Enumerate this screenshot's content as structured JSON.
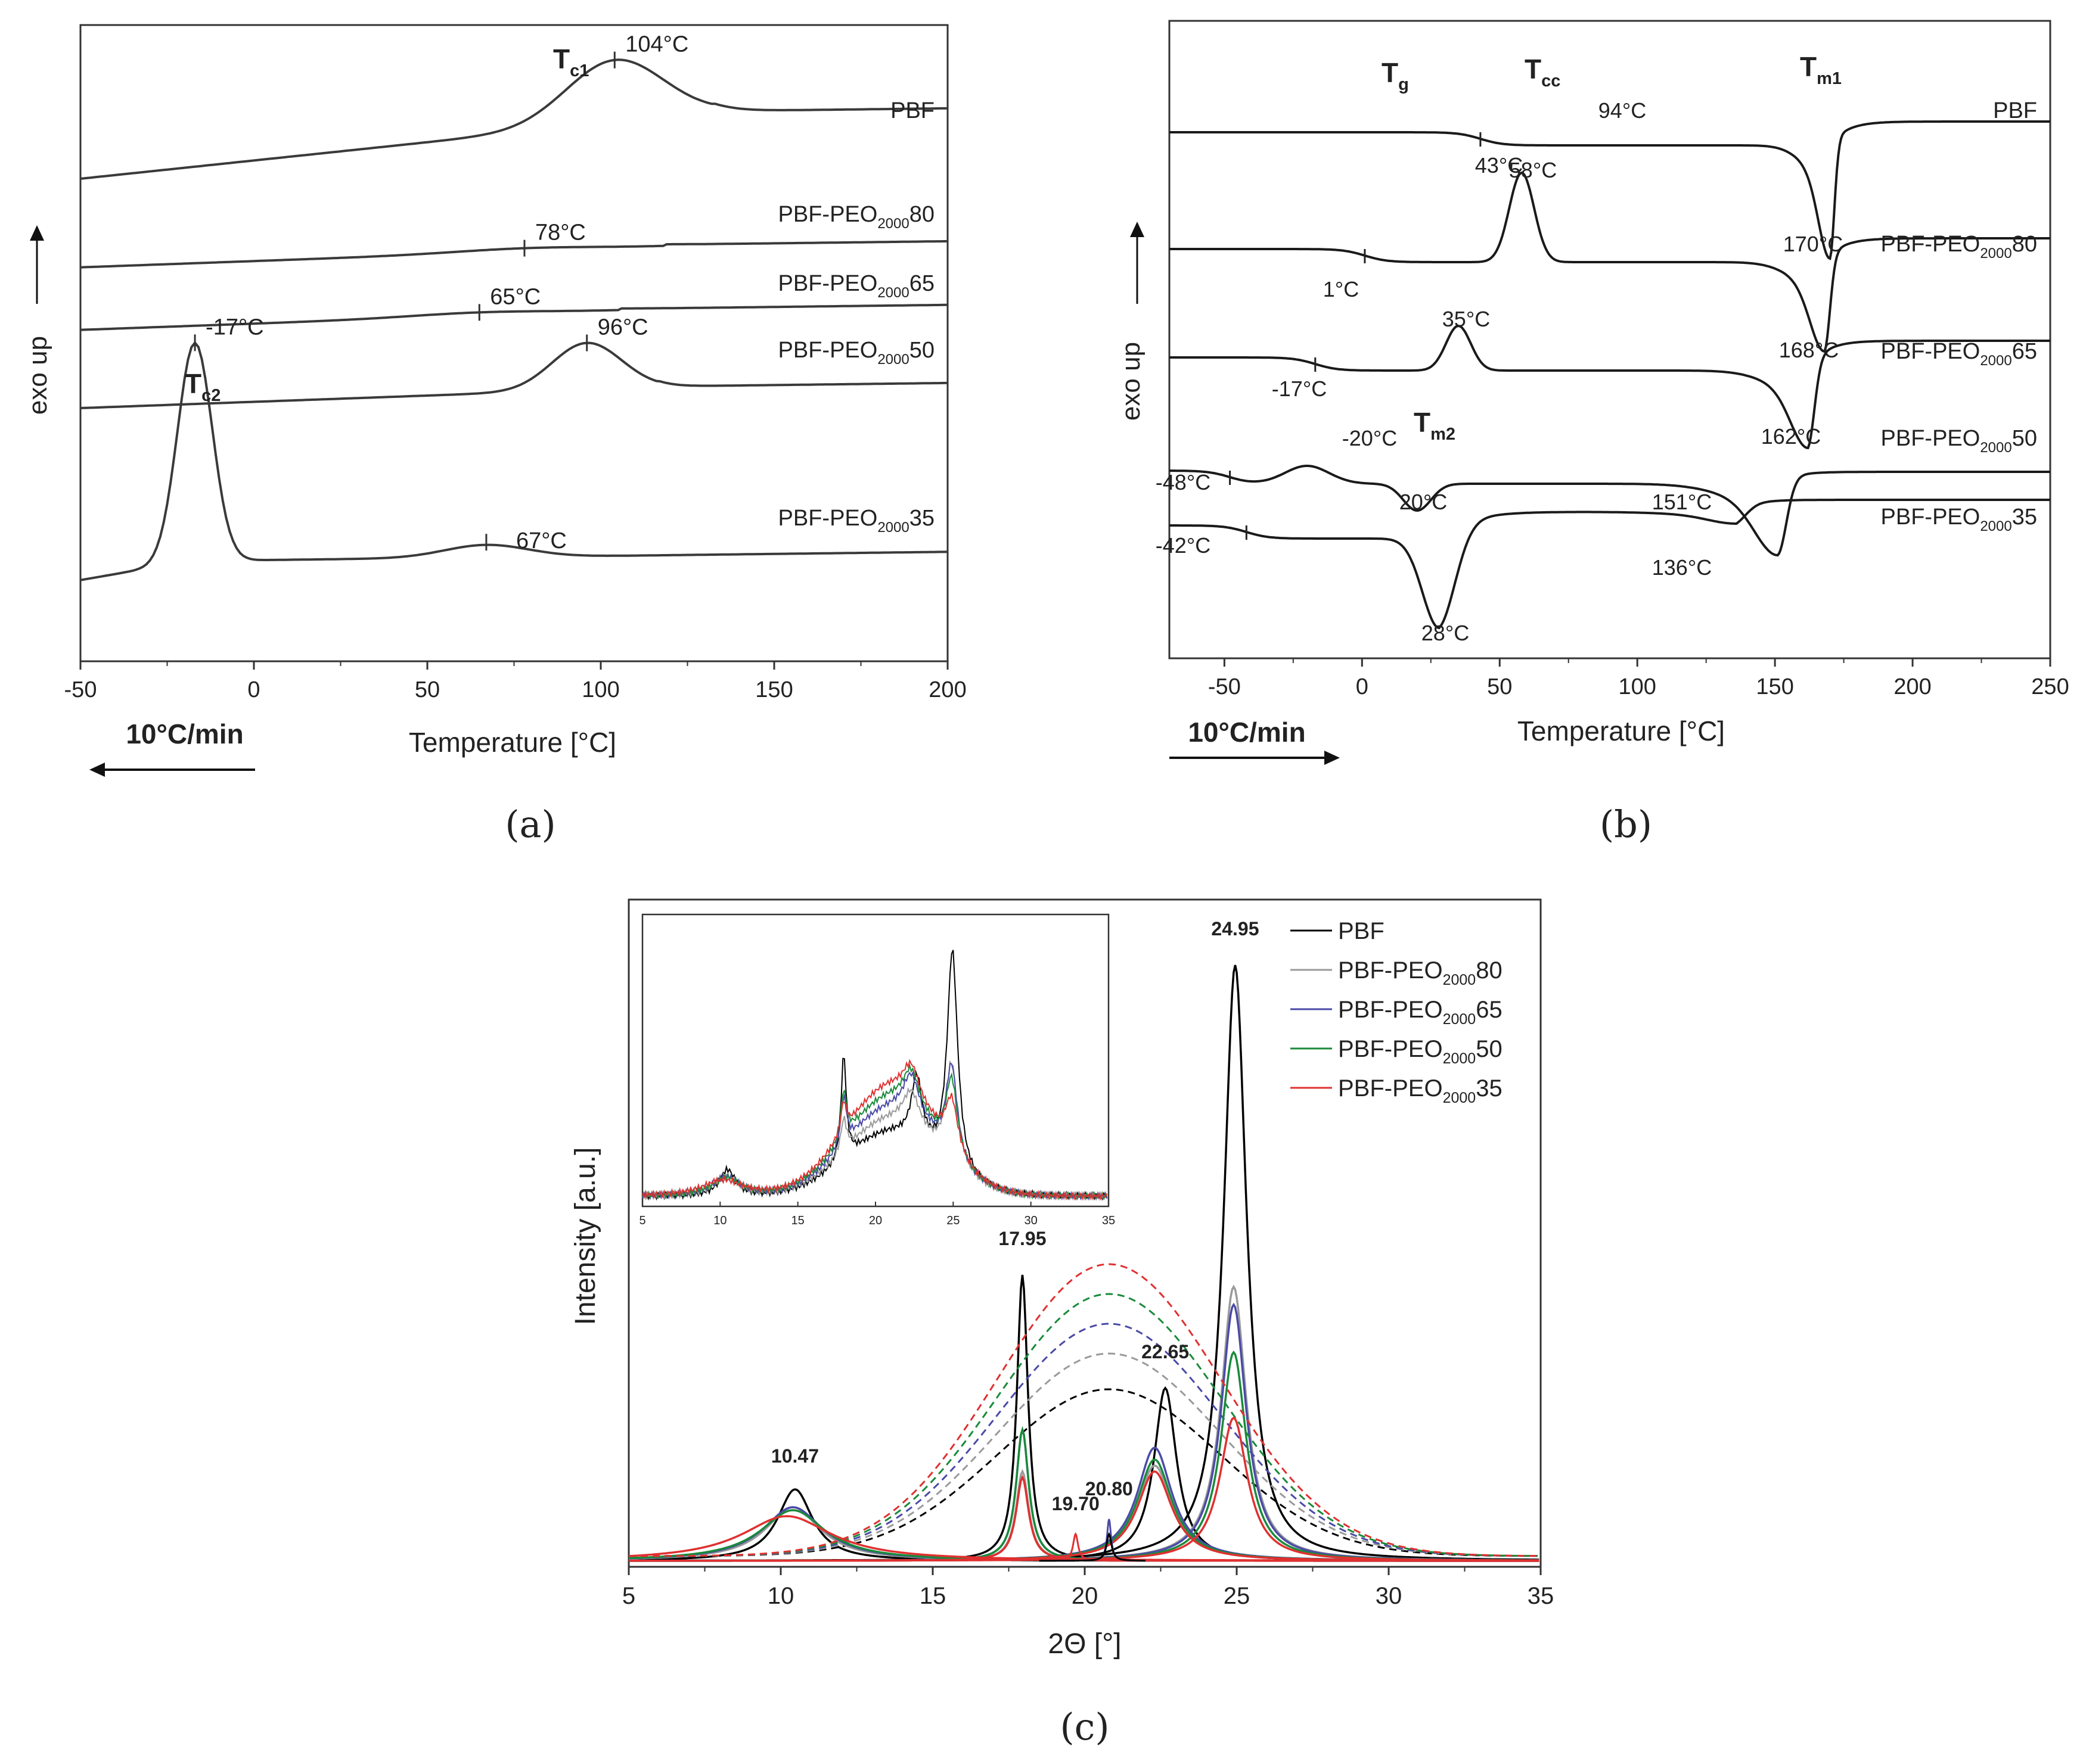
{
  "chart_data": [
    {
      "id": "a",
      "type": "line",
      "panel_label": "(a)",
      "xlabel": "Temperature [°C]",
      "ylabel": "exo up",
      "xlim": [
        -50,
        200
      ],
      "xticks": [
        -50,
        0,
        50,
        100,
        150,
        200
      ],
      "rate_label": "10°C/min",
      "rate_direction": "left",
      "transitions": [
        {
          "main": "T",
          "sub": "c1"
        },
        {
          "main": "T",
          "sub": "c2"
        }
      ],
      "series": [
        {
          "name": "PBF",
          "label_main": "PBF",
          "label_sub": "",
          "label_suffix": "",
          "peak": 104,
          "peak_label": "104°C",
          "offset": 4.4,
          "slope": 0.0035,
          "peak_height": 0.6,
          "peak_width": 14
        },
        {
          "name": "PBF-PEO200080",
          "label_main": "PBF-PEO",
          "label_sub": "2000",
          "label_suffix": "80",
          "peak": 78,
          "peak_label": "78°C",
          "offset": 3.55,
          "slope": 0.0012,
          "peak_height": 0.03,
          "peak_width": 20
        },
        {
          "name": "PBF-PEO200065",
          "label_main": "PBF-PEO",
          "label_sub": "2000",
          "label_suffix": "65",
          "peak": 65,
          "peak_label": "65°C",
          "offset": 2.95,
          "slope": 0.0012,
          "peak_height": 0.03,
          "peak_width": 20
        },
        {
          "name": "PBF-PEO200050",
          "label_main": "PBF-PEO",
          "label_sub": "2000",
          "label_suffix": "50",
          "peak": 96,
          "peak_label": "96°C",
          "offset": 2.2,
          "slope": 0.0012,
          "peak_height": 0.45,
          "peak_width": 10
        },
        {
          "name": "PBF-PEO200035",
          "label_main": "PBF-PEO",
          "label_sub": "2000",
          "label_suffix": "35",
          "peak": -17,
          "peak_label": "-17°C",
          "second_peak": 67,
          "second_peak_label": "67°C",
          "offset": 0.7,
          "slope": 0.0008,
          "peak_height": 2.1,
          "peak_width": 5
        }
      ]
    },
    {
      "id": "b",
      "type": "line",
      "panel_label": "(b)",
      "xlabel": "Temperature [°C]",
      "ylabel": "exo up",
      "xlim": [
        -70,
        250
      ],
      "xticks": [
        -50,
        0,
        50,
        100,
        150,
        200,
        250
      ],
      "rate_label": "10°C/min",
      "rate_direction": "right",
      "transitions": [
        {
          "main": "T",
          "sub": "g"
        },
        {
          "main": "T",
          "sub": "cc"
        },
        {
          "main": "T",
          "sub": "m1"
        },
        {
          "main": "T",
          "sub": "m2"
        }
      ],
      "series": [
        {
          "name": "PBF",
          "label_main": "PBF",
          "label_sub": "",
          "label_suffix": "",
          "tg": 43,
          "tg_label": "43°C",
          "mark2": 94,
          "mark2_label": "94°C",
          "tm": 170,
          "tm_label": "170°C"
        },
        {
          "name": "PBF-PEO200080",
          "label_main": "PBF-PEO",
          "label_sub": "2000",
          "label_suffix": "80",
          "tg": 1,
          "tg_label": "1°C",
          "tcc": 58,
          "tcc_label": "58°C",
          "tm": 168,
          "tm_label": "168°C"
        },
        {
          "name": "PBF-PEO200065",
          "label_main": "PBF-PEO",
          "label_sub": "2000",
          "label_suffix": "65",
          "tg": -17,
          "tg_label": "-17°C",
          "tcc": 35,
          "tcc_label": "35°C",
          "tm": 162,
          "tm_label": "162°C"
        },
        {
          "name": "PBF-PEO200050",
          "label_main": "PBF-PEO",
          "label_sub": "2000",
          "label_suffix": "50",
          "tg": -48,
          "tg_label": "-48°C",
          "tcc": -20,
          "tcc_label": "-20°C",
          "tm2": 20,
          "tm2_label": "20°C",
          "tm": 151,
          "tm_label": "151°C"
        },
        {
          "name": "PBF-PEO200035",
          "label_main": "PBF-PEO",
          "label_sub": "2000",
          "label_suffix": "35",
          "tg": -42,
          "tg_label": "-42°C",
          "tm2": 28,
          "tm2_label": "28°C",
          "tm": 136,
          "tm_label": "136°C"
        }
      ]
    },
    {
      "id": "c",
      "type": "line",
      "panel_label": "(c)",
      "xlabel": "2Θ [°]",
      "ylabel": "Intensity [a.u.]",
      "xlim": [
        5,
        35
      ],
      "xticks": [
        5,
        10,
        15,
        20,
        25,
        30,
        35
      ],
      "peak_labels": [
        {
          "x": 10.47,
          "label": "10.47"
        },
        {
          "x": 17.95,
          "label": "17.95"
        },
        {
          "x": 19.7,
          "label": "19.70"
        },
        {
          "x": 20.8,
          "label": "20.80"
        },
        {
          "x": 22.65,
          "label": "22.65"
        },
        {
          "x": 24.95,
          "label": "24.95"
        }
      ],
      "legend_position": "top-right",
      "series": [
        {
          "name": "PBF",
          "label_main": "PBF",
          "label_sub": "",
          "label_suffix": "",
          "color": "#000000",
          "peaks": [
            [
              10.47,
              0.12,
              0.7
            ],
            [
              17.95,
              0.48,
              0.22
            ],
            [
              22.65,
              0.29,
              0.45
            ],
            [
              24.95,
              1.0,
              0.45
            ]
          ],
          "amorphous": 0.28
        },
        {
          "name": "PBF-PEO200080",
          "label_main": "PBF-PEO",
          "label_sub": "2000",
          "label_suffix": "80",
          "color": "#9a9a9a",
          "peaks": [
            [
              10.4,
              0.09,
              1.1
            ],
            [
              17.95,
              0.15,
              0.25
            ],
            [
              22.3,
              0.16,
              0.7
            ],
            [
              24.9,
              0.46,
              0.5
            ]
          ],
          "amorphous": 0.34
        },
        {
          "name": "PBF-PEO200065",
          "label_main": "PBF-PEO",
          "label_sub": "2000",
          "label_suffix": "65",
          "color": "#4a4aa8",
          "peaks": [
            [
              10.4,
              0.09,
              1.2
            ],
            [
              17.95,
              0.22,
              0.25
            ],
            [
              22.3,
              0.19,
              0.7
            ],
            [
              24.9,
              0.43,
              0.5
            ]
          ],
          "amorphous": 0.39
        },
        {
          "name": "PBF-PEO200050",
          "label_main": "PBF-PEO",
          "label_sub": "2000",
          "label_suffix": "50",
          "color": "#1a8a3a",
          "peaks": [
            [
              10.4,
              0.085,
              1.3
            ],
            [
              17.95,
              0.22,
              0.25
            ],
            [
              22.3,
              0.17,
              0.7
            ],
            [
              24.9,
              0.35,
              0.5
            ]
          ],
          "amorphous": 0.44
        },
        {
          "name": "PBF-PEO200035",
          "label_main": "PBF-PEO",
          "label_sub": "2000",
          "label_suffix": "35",
          "color": "#e03030",
          "peaks": [
            [
              10.2,
              0.075,
              1.8
            ],
            [
              17.95,
              0.14,
              0.25
            ],
            [
              22.3,
              0.15,
              0.7
            ],
            [
              24.9,
              0.24,
              0.55
            ]
          ],
          "amorphous": 0.49
        }
      ],
      "inset": {
        "xlim": [
          5,
          35
        ],
        "xticks": [
          5,
          10,
          15,
          20,
          25,
          30,
          35
        ]
      }
    }
  ]
}
